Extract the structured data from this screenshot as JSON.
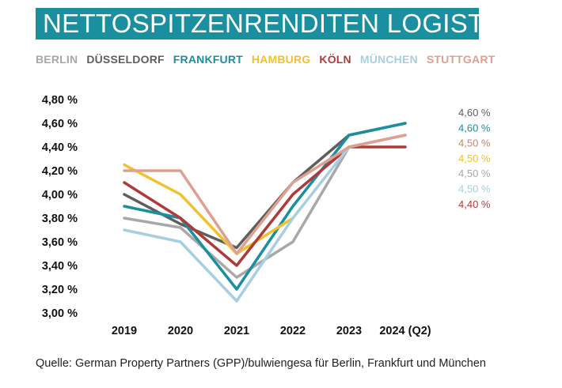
{
  "title": "NETTOSPITZENRENDITEN LOGISTIK",
  "source": "Quelle: German Property Partners (GPP)/bulwiengesa für Berlin, Frankfurt und München",
  "chart_data": {
    "type": "line",
    "categories": [
      "2019",
      "2020",
      "2021",
      "2022",
      "2023",
      "2024 (Q2)"
    ],
    "ylim": [
      3.0,
      4.8
    ],
    "yticks": [
      "3,00 %",
      "3,20 %",
      "3,40 %",
      "3,60 %",
      "3,80 %",
      "4,00 %",
      "4,20 %",
      "4,40 %",
      "4,60 %",
      "4,80 %"
    ],
    "ytick_values": [
      3.0,
      3.2,
      3.4,
      3.6,
      3.8,
      4.0,
      4.2,
      4.4,
      4.6,
      4.8
    ],
    "grid": false,
    "legend_position": "top",
    "series": [
      {
        "name": "BERLIN",
        "color": "#a8a8a8",
        "values": [
          3.8,
          3.72,
          3.3,
          3.6,
          4.4,
          4.5
        ]
      },
      {
        "name": "DÜSSELDORF",
        "color": "#5e5e5e",
        "values": [
          4.0,
          3.75,
          3.55,
          4.1,
          4.5,
          4.6
        ]
      },
      {
        "name": "FRANKFURT",
        "color": "#1a8fa0",
        "values": [
          3.9,
          3.8,
          3.2,
          3.9,
          4.5,
          4.6
        ]
      },
      {
        "name": "HAMBURG",
        "color": "#f2c12e",
        "values": [
          4.25,
          4.0,
          3.5,
          3.8,
          null,
          null
        ]
      },
      {
        "name": "KÖLN",
        "color": "#b03a3a",
        "values": [
          4.1,
          3.8,
          3.4,
          4.0,
          4.4,
          4.4
        ]
      },
      {
        "name": "MÜNCHEN",
        "color": "#a6cfe0",
        "values": [
          3.7,
          3.6,
          3.1,
          3.8,
          4.4,
          4.5
        ]
      },
      {
        "name": "STUTTGART",
        "color": "#e0a090",
        "values": [
          4.2,
          4.2,
          3.5,
          4.1,
          4.4,
          4.5
        ]
      }
    ],
    "end_labels": [
      {
        "text": "4,60 %",
        "color": "#5e5e5e"
      },
      {
        "text": "4,60 %",
        "color": "#1a8fa0"
      },
      {
        "text": "4,50 %",
        "color": "#c8826f"
      },
      {
        "text": "4,50 %",
        "color": "#f2c12e"
      },
      {
        "text": "4,50 %",
        "color": "#a8a8a8"
      },
      {
        "text": "4,50 %",
        "color": "#a6cfe0"
      },
      {
        "text": "4,40 %",
        "color": "#b03a3a"
      }
    ]
  }
}
